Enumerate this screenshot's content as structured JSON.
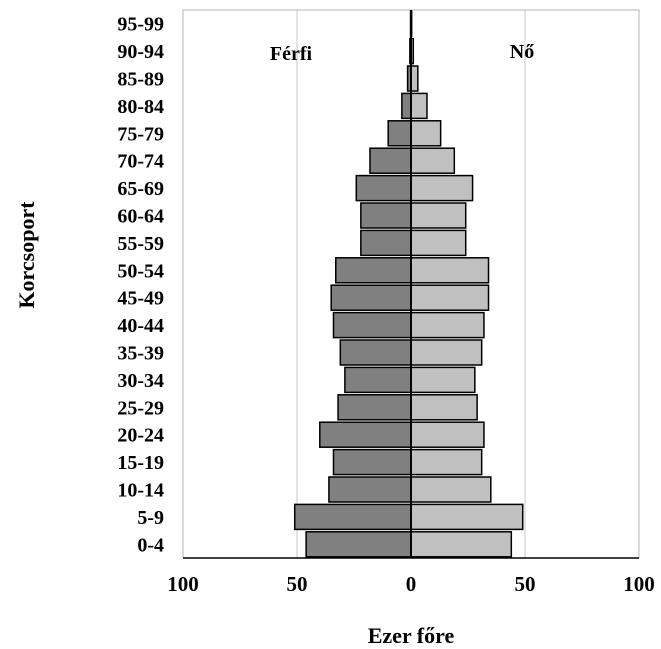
{
  "chart_data": {
    "type": "bar",
    "orientation": "horizontal",
    "layout": "population-pyramid",
    "xlabel": "Ezer főre",
    "ylabel": "Korcsoport",
    "xlim": [
      -100,
      100
    ],
    "xticks": [
      -100,
      -50,
      0,
      50,
      100
    ],
    "xtick_labels": [
      "100",
      "50",
      "0",
      "50",
      "100"
    ],
    "grid": "vertical gridlines at ±50 and ±100",
    "categories": [
      "0-4",
      "5-9",
      "10-14",
      "15-19",
      "20-24",
      "25-29",
      "30-34",
      "35-39",
      "40-44",
      "45-49",
      "50-54",
      "55-59",
      "60-64",
      "65-69",
      "70-74",
      "75-79",
      "80-84",
      "85-89",
      "90-94",
      "95-99"
    ],
    "series": [
      {
        "name": "Férfi",
        "side": "left",
        "color": "#808080",
        "values": [
          46,
          51,
          36,
          34,
          40,
          32,
          29,
          31,
          34,
          35,
          33,
          22,
          22,
          24,
          18,
          10,
          4,
          1.5,
          0.5,
          0.2
        ]
      },
      {
        "name": "Nő",
        "side": "right",
        "color": "#c0c0c0",
        "values": [
          44,
          49,
          35,
          31,
          32,
          29,
          28,
          31,
          32,
          34,
          34,
          24,
          24,
          27,
          19,
          13,
          7,
          3,
          1,
          0.3
        ]
      }
    ]
  }
}
